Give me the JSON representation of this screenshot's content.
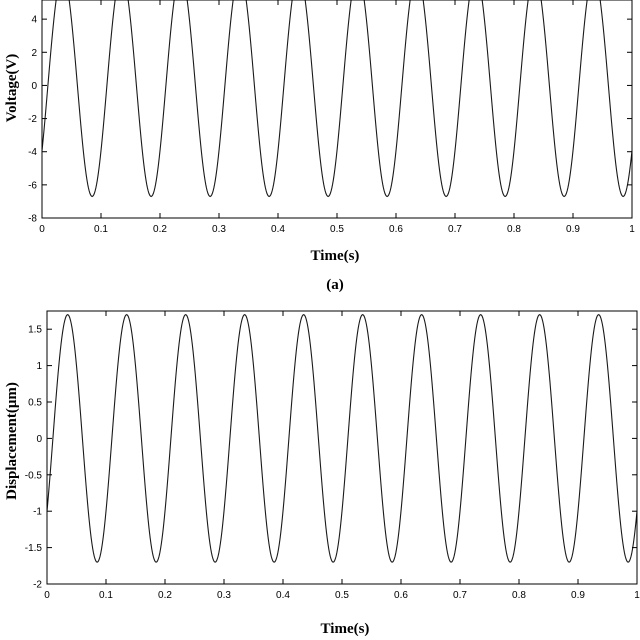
{
  "chart_data": [
    {
      "type": "line",
      "xlabel": "Time(s)",
      "ylabel": "Voltage(V)",
      "xlim": [
        0,
        1
      ],
      "ylim": [
        -8,
        6
      ],
      "x_ticks": [
        "0",
        "0.1",
        "0.2",
        "0.3",
        "0.4",
        "0.5",
        "0.6",
        "0.7",
        "0.8",
        "0.9",
        "1"
      ],
      "y_ticks": [
        "-8",
        "-6",
        "-4",
        "-2",
        "0",
        "2",
        "4"
      ],
      "grid": false,
      "series": [
        {
          "waveform": "sinusoid",
          "frequency_hz": 10,
          "max": 6.7,
          "min": -6.7,
          "first_peak_time_s": 0.035,
          "sample_points": [
            {
              "x": 0.0,
              "y": -4.5
            },
            {
              "x": 0.035,
              "y": 6.7
            },
            {
              "x": 0.085,
              "y": -6.7
            },
            {
              "x": 0.135,
              "y": 6.7
            },
            {
              "x": 0.185,
              "y": -6.7
            },
            {
              "x": 0.235,
              "y": 6.7
            },
            {
              "x": 0.285,
              "y": -6.7
            },
            {
              "x": 0.335,
              "y": 6.7
            },
            {
              "x": 0.385,
              "y": -6.7
            },
            {
              "x": 0.435,
              "y": 6.7
            },
            {
              "x": 0.485,
              "y": -6.7
            },
            {
              "x": 0.535,
              "y": 6.7
            },
            {
              "x": 0.585,
              "y": -6.7
            },
            {
              "x": 0.635,
              "y": 6.7
            },
            {
              "x": 0.685,
              "y": -6.7
            },
            {
              "x": 0.735,
              "y": 6.7
            },
            {
              "x": 0.785,
              "y": -6.7
            },
            {
              "x": 0.835,
              "y": 6.7
            },
            {
              "x": 0.885,
              "y": -6.7
            },
            {
              "x": 0.935,
              "y": 6.7
            },
            {
              "x": 0.985,
              "y": -6.7
            },
            {
              "x": 1.0,
              "y": -4.5
            }
          ]
        }
      ],
      "panel_label": "(a)"
    },
    {
      "type": "line",
      "xlabel": "Time(s)",
      "ylabel": "Displacement(μm)",
      "xlim": [
        0,
        1
      ],
      "ylim": [
        -2,
        1.75
      ],
      "x_ticks": [
        "0",
        "0.1",
        "0.2",
        "0.3",
        "0.4",
        "0.5",
        "0.6",
        "0.7",
        "0.8",
        "0.9",
        "1"
      ],
      "y_ticks": [
        "-2",
        "-1.5",
        "-1",
        "-0.5",
        "0",
        "0.5",
        "1",
        "1.5"
      ],
      "grid": false,
      "series": [
        {
          "waveform": "sinusoid",
          "frequency_hz": 10,
          "max": 1.7,
          "min": -1.7,
          "first_peak_time_s": 0.035,
          "sample_points": [
            {
              "x": 0.0,
              "y": -1.1
            },
            {
              "x": 0.035,
              "y": 1.7
            },
            {
              "x": 0.085,
              "y": -1.7
            },
            {
              "x": 0.135,
              "y": 1.7
            },
            {
              "x": 0.185,
              "y": -1.7
            },
            {
              "x": 0.235,
              "y": 1.7
            },
            {
              "x": 0.285,
              "y": -1.7
            },
            {
              "x": 0.335,
              "y": 1.7
            },
            {
              "x": 0.385,
              "y": -1.7
            },
            {
              "x": 0.435,
              "y": 1.7
            },
            {
              "x": 0.485,
              "y": -1.7
            },
            {
              "x": 0.535,
              "y": 1.7
            },
            {
              "x": 0.585,
              "y": -1.7
            },
            {
              "x": 0.635,
              "y": 1.7
            },
            {
              "x": 0.685,
              "y": -1.7
            },
            {
              "x": 0.735,
              "y": 1.7
            },
            {
              "x": 0.785,
              "y": -1.7
            },
            {
              "x": 0.835,
              "y": 1.7
            },
            {
              "x": 0.885,
              "y": -1.7
            },
            {
              "x": 0.935,
              "y": 1.7
            },
            {
              "x": 0.985,
              "y": -1.7
            },
            {
              "x": 1.0,
              "y": -1.1
            }
          ]
        }
      ]
    }
  ]
}
